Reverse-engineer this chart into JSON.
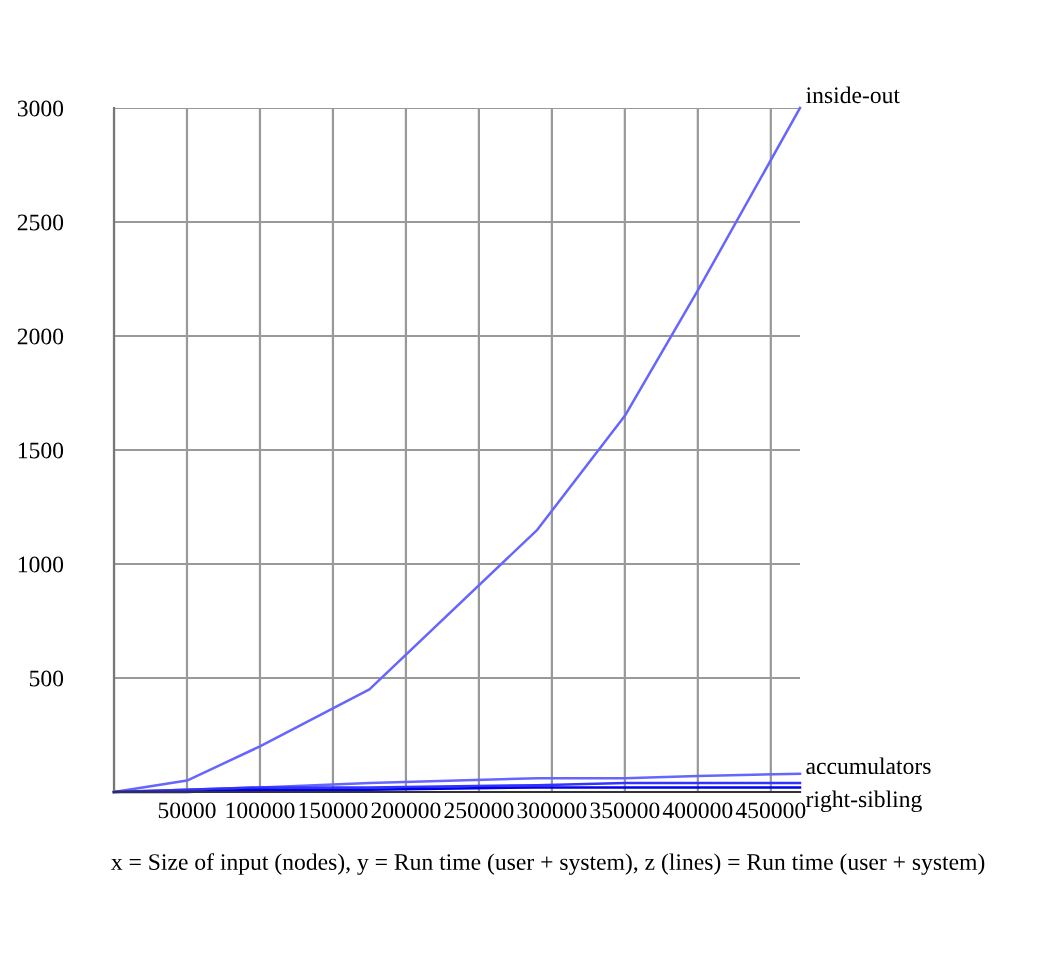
{
  "chart_data": {
    "type": "line",
    "xlabel": "x = Size of input (nodes), y = Run time (user + system), z (lines) = Run time (user + system)",
    "xlim": [
      0,
      470000
    ],
    "ylim": [
      0,
      3000
    ],
    "xticks": [
      {
        "value": 0,
        "label": null
      },
      50000,
      100000,
      150000,
      200000,
      250000,
      300000,
      350000,
      400000,
      450000
    ],
    "yticks": [
      {
        "value": 0,
        "label": null
      },
      500,
      1000,
      1500,
      2000,
      2500,
      3000
    ],
    "grid": true,
    "legend": false,
    "marker": "none",
    "line_style": "solid",
    "series": [
      {
        "name": "inside-out",
        "color": "#6666ff",
        "x": [
          0,
          50000,
          100000,
          175000,
          290000,
          350000,
          400000,
          470000
        ],
        "values": [
          0,
          50,
          200,
          450,
          1150,
          1650,
          2200,
          3000
        ]
      },
      {
        "name": "accumulators",
        "color": "#6666ff",
        "x": [
          0,
          50000,
          100000,
          175000,
          290000,
          350000,
          400000,
          470000
        ],
        "values": [
          0,
          10,
          20,
          40,
          60,
          60,
          70,
          80
        ]
      },
      {
        "name": null,
        "color": "#3333ff",
        "x": [
          0,
          50000,
          100000,
          175000,
          290000,
          350000,
          400000,
          470000
        ],
        "values": [
          0,
          10,
          20,
          20,
          30,
          40,
          40,
          40
        ]
      },
      {
        "name": "right-sibling",
        "color": "#0000ee",
        "x": [
          0,
          50000,
          100000,
          175000,
          290000,
          350000,
          400000,
          470000
        ],
        "values": [
          0,
          0,
          10,
          10,
          20,
          20,
          20,
          20
        ]
      }
    ]
  }
}
